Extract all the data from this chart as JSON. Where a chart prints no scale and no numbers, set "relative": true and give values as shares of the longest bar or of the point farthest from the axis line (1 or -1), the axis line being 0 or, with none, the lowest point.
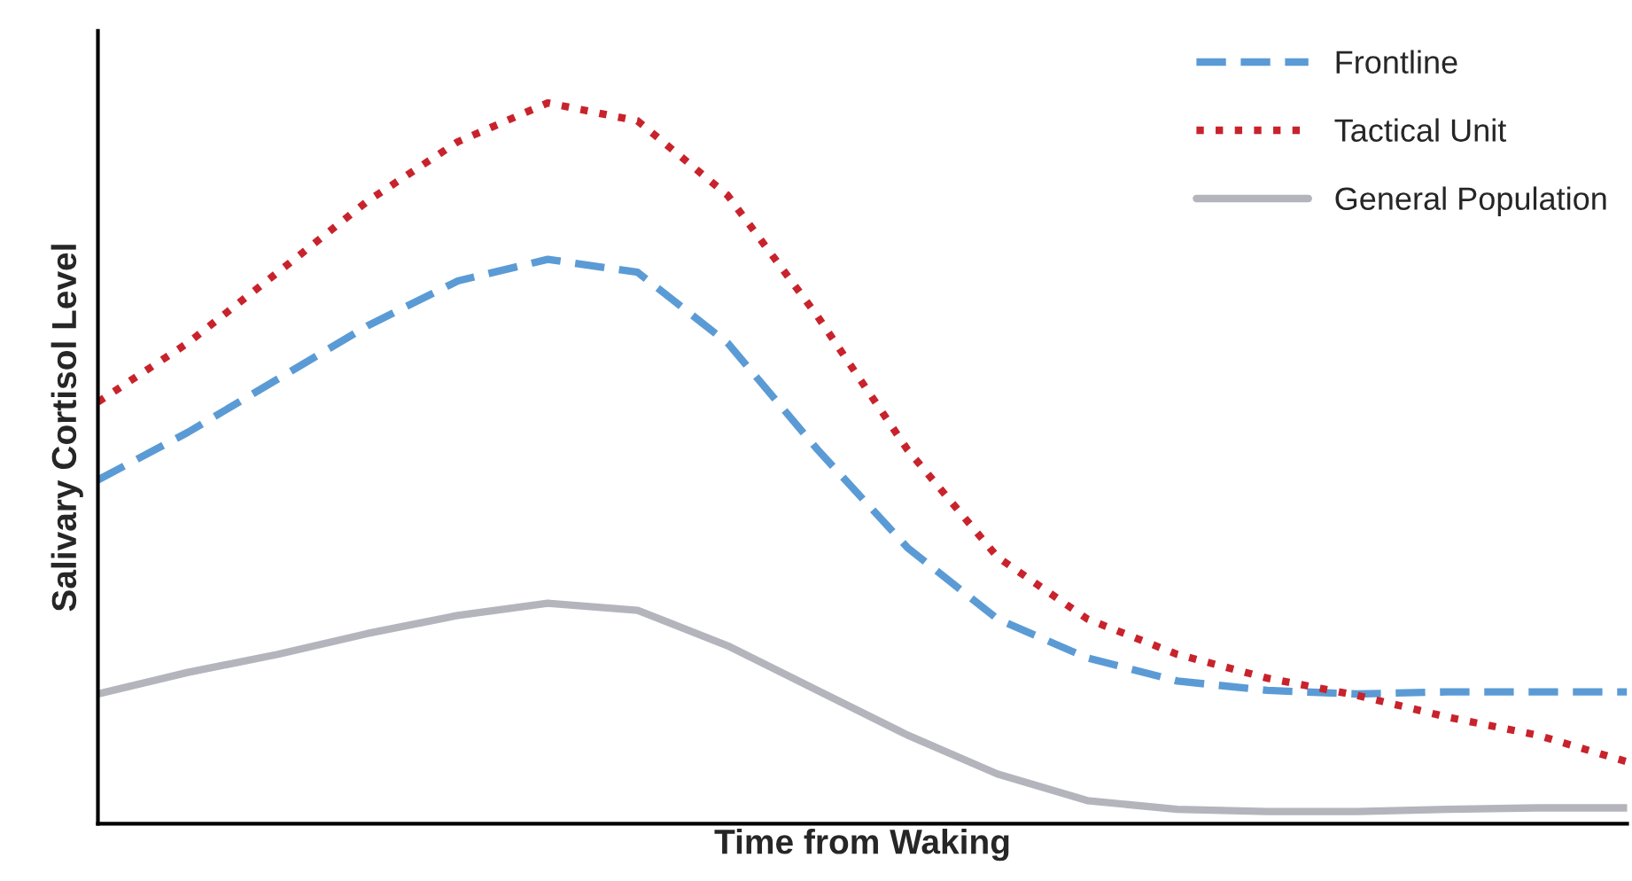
{
  "chart_data": {
    "type": "line",
    "relative": true,
    "xlabel": "Time from Waking",
    "ylabel": "Salivary Cortisol Level",
    "categories": [
      null,
      null,
      null,
      null,
      null,
      null,
      null,
      null,
      null,
      null,
      null,
      null,
      null,
      null,
      null,
      null,
      null,
      null
    ],
    "series": [
      {
        "name": "Frontline",
        "color": "#5b9bd5",
        "line_style": "dashed",
        "values": [
          0.477,
          0.543,
          0.617,
          0.691,
          0.753,
          0.783,
          0.765,
          0.667,
          0.519,
          0.383,
          0.284,
          0.23,
          0.198,
          0.185,
          0.18,
          0.183,
          0.183,
          0.183
        ]
      },
      {
        "name": "Tactical Unit",
        "color": "#c8232c",
        "line_style": "dotted",
        "values": [
          0.585,
          0.667,
          0.765,
          0.864,
          0.946,
          1.0,
          0.975,
          0.872,
          0.704,
          0.519,
          0.37,
          0.284,
          0.235,
          0.202,
          0.178,
          0.148,
          0.123,
          0.086
        ]
      },
      {
        "name": "General Population",
        "color": "#b4b4bc",
        "line_style": "solid",
        "values": [
          0.18,
          0.21,
          0.235,
          0.264,
          0.289,
          0.306,
          0.296,
          0.247,
          0.185,
          0.123,
          0.069,
          0.032,
          0.02,
          0.017,
          0.017,
          0.02,
          0.022,
          0.022
        ]
      }
    ],
    "legend": "top right",
    "tick_labels": false,
    "marker": "none"
  }
}
